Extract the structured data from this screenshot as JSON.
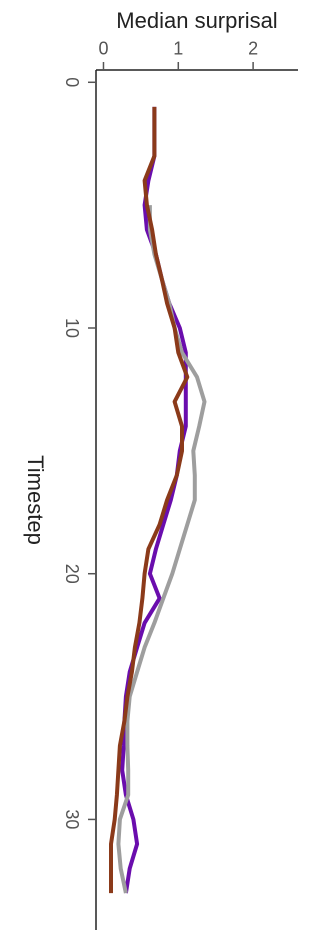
{
  "chart_data": {
    "type": "line",
    "title": "",
    "xlabel": "Timestep",
    "ylabel": "Median surprisal",
    "xlim": [
      -0.5,
      34.5
    ],
    "ylim": [
      -0.1,
      2.6
    ],
    "x_ticks": [
      0,
      10,
      20,
      30
    ],
    "y_ticks": [
      0,
      1,
      2
    ],
    "grid": false,
    "legend": "none",
    "series": [
      {
        "color": "#6a0dad",
        "x": [
          1,
          2,
          3,
          4,
          5,
          6,
          7,
          8,
          9,
          10,
          11,
          12,
          13,
          14,
          15,
          16,
          17,
          18,
          19,
          20,
          21,
          22,
          23,
          24,
          25,
          26,
          27,
          28,
          29,
          30,
          31,
          32,
          33
        ],
        "y": [
          0.68,
          0.68,
          0.68,
          0.6,
          0.55,
          0.58,
          0.7,
          0.78,
          0.88,
          1.02,
          1.1,
          1.1,
          1.1,
          1.1,
          1.02,
          0.98,
          0.9,
          0.8,
          0.7,
          0.62,
          0.75,
          0.55,
          0.45,
          0.35,
          0.3,
          0.28,
          0.27,
          0.25,
          0.3,
          0.4,
          0.45,
          0.35,
          0.3
        ]
      },
      {
        "color": "#9e9e9e",
        "x": [
          5,
          6,
          7,
          8,
          9,
          10,
          11,
          12,
          13,
          14,
          15,
          16,
          17,
          18,
          19,
          20,
          21,
          22,
          23,
          24,
          25,
          26,
          27,
          28,
          29,
          30,
          31,
          32,
          33
        ],
        "y": [
          0.62,
          0.62,
          0.68,
          0.78,
          0.88,
          0.95,
          1.05,
          1.25,
          1.35,
          1.28,
          1.2,
          1.22,
          1.22,
          1.12,
          1.02,
          0.92,
          0.8,
          0.68,
          0.55,
          0.45,
          0.35,
          0.32,
          0.32,
          0.33,
          0.33,
          0.22,
          0.2,
          0.23,
          0.3
        ]
      },
      {
        "color": "#8b3a1a",
        "x": [
          1,
          2,
          3,
          4,
          5,
          6,
          7,
          8,
          9,
          10,
          11,
          12,
          13,
          14,
          15,
          16,
          17,
          18,
          19,
          20,
          21,
          22,
          23,
          24,
          25,
          26,
          27,
          28,
          29,
          30,
          31,
          32,
          33
        ],
        "y": [
          0.68,
          0.68,
          0.68,
          0.55,
          0.58,
          0.65,
          0.7,
          0.78,
          0.85,
          0.95,
          1.0,
          1.12,
          0.95,
          1.05,
          1.05,
          0.98,
          0.85,
          0.75,
          0.6,
          0.55,
          0.52,
          0.48,
          0.42,
          0.38,
          0.32,
          0.28,
          0.22,
          0.2,
          0.18,
          0.15,
          0.1,
          0.1,
          0.1
        ]
      }
    ]
  }
}
